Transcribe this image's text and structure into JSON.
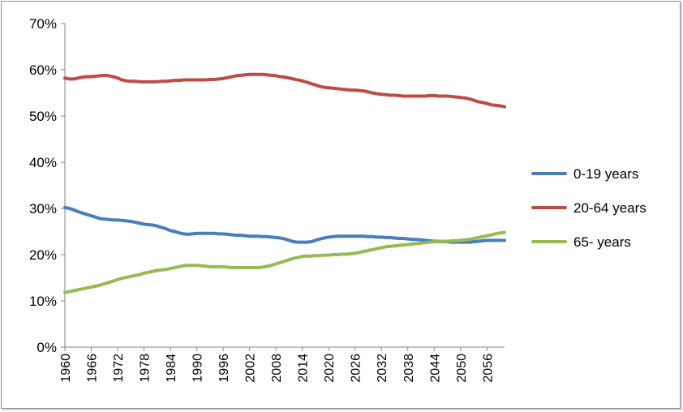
{
  "chart_data": {
    "type": "line",
    "title": "",
    "xlabel": "",
    "ylabel": "",
    "ylim": [
      0,
      0.7
    ],
    "xlim": [
      1960,
      2060
    ],
    "y_tick_values": [
      0,
      0.1,
      0.2,
      0.3,
      0.4,
      0.5,
      0.6,
      0.7
    ],
    "y_tick_labels": [
      "0%",
      "10%",
      "20%",
      "30%",
      "40%",
      "50%",
      "60%",
      "70%"
    ],
    "x_tick_values": [
      1960,
      1966,
      1972,
      1978,
      1984,
      1990,
      1996,
      2002,
      2008,
      2014,
      2020,
      2026,
      2032,
      2038,
      2044,
      2050,
      2056
    ],
    "x_tick_labels": [
      "1960",
      "1966",
      "1972",
      "1978",
      "1984",
      "1990",
      "1996",
      "2002",
      "2008",
      "2014",
      "2020",
      "2026",
      "2032",
      "2038",
      "2044",
      "2050",
      "2056"
    ],
    "grid": false,
    "legend_position": "right",
    "series": [
      {
        "name": "0-19 years",
        "color": "#4a7ebb",
        "points": [
          [
            1960,
            0.302
          ],
          [
            1961,
            0.3
          ],
          [
            1962,
            0.297
          ],
          [
            1963,
            0.293
          ],
          [
            1964,
            0.29
          ],
          [
            1965,
            0.287
          ],
          [
            1966,
            0.284
          ],
          [
            1967,
            0.281
          ],
          [
            1968,
            0.278
          ],
          [
            1969,
            0.277
          ],
          [
            1970,
            0.276
          ],
          [
            1971,
            0.275
          ],
          [
            1972,
            0.275
          ],
          [
            1973,
            0.274
          ],
          [
            1974,
            0.273
          ],
          [
            1975,
            0.272
          ],
          [
            1976,
            0.27
          ],
          [
            1977,
            0.268
          ],
          [
            1978,
            0.266
          ],
          [
            1979,
            0.265
          ],
          [
            1980,
            0.264
          ],
          [
            1981,
            0.262
          ],
          [
            1982,
            0.259
          ],
          [
            1983,
            0.256
          ],
          [
            1984,
            0.252
          ],
          [
            1985,
            0.25
          ],
          [
            1986,
            0.247
          ],
          [
            1987,
            0.245
          ],
          [
            1988,
            0.244
          ],
          [
            1989,
            0.245
          ],
          [
            1990,
            0.246
          ],
          [
            1991,
            0.246
          ],
          [
            1992,
            0.246
          ],
          [
            1993,
            0.246
          ],
          [
            1994,
            0.246
          ],
          [
            1995,
            0.245
          ],
          [
            1996,
            0.245
          ],
          [
            1997,
            0.244
          ],
          [
            1998,
            0.243
          ],
          [
            1999,
            0.242
          ],
          [
            2000,
            0.242
          ],
          [
            2001,
            0.241
          ],
          [
            2002,
            0.24
          ],
          [
            2003,
            0.24
          ],
          [
            2004,
            0.24
          ],
          [
            2005,
            0.239
          ],
          [
            2006,
            0.239
          ],
          [
            2007,
            0.238
          ],
          [
            2008,
            0.237
          ],
          [
            2009,
            0.236
          ],
          [
            2010,
            0.234
          ],
          [
            2011,
            0.231
          ],
          [
            2012,
            0.228
          ],
          [
            2013,
            0.227
          ],
          [
            2014,
            0.227
          ],
          [
            2015,
            0.227
          ],
          [
            2016,
            0.228
          ],
          [
            2017,
            0.231
          ],
          [
            2018,
            0.234
          ],
          [
            2019,
            0.236
          ],
          [
            2020,
            0.238
          ],
          [
            2021,
            0.239
          ],
          [
            2022,
            0.24
          ],
          [
            2023,
            0.24
          ],
          [
            2024,
            0.24
          ],
          [
            2025,
            0.24
          ],
          [
            2026,
            0.24
          ],
          [
            2027,
            0.24
          ],
          [
            2028,
            0.24
          ],
          [
            2029,
            0.239
          ],
          [
            2030,
            0.239
          ],
          [
            2031,
            0.238
          ],
          [
            2032,
            0.238
          ],
          [
            2033,
            0.237
          ],
          [
            2034,
            0.237
          ],
          [
            2035,
            0.236
          ],
          [
            2036,
            0.235
          ],
          [
            2037,
            0.235
          ],
          [
            2038,
            0.234
          ],
          [
            2039,
            0.233
          ],
          [
            2040,
            0.233
          ],
          [
            2041,
            0.232
          ],
          [
            2042,
            0.231
          ],
          [
            2043,
            0.23
          ],
          [
            2044,
            0.229
          ],
          [
            2045,
            0.229
          ],
          [
            2046,
            0.228
          ],
          [
            2047,
            0.228
          ],
          [
            2048,
            0.227
          ],
          [
            2049,
            0.227
          ],
          [
            2050,
            0.227
          ],
          [
            2051,
            0.227
          ],
          [
            2052,
            0.227
          ],
          [
            2053,
            0.228
          ],
          [
            2054,
            0.229
          ],
          [
            2055,
            0.23
          ],
          [
            2056,
            0.231
          ],
          [
            2057,
            0.231
          ],
          [
            2058,
            0.231
          ],
          [
            2059,
            0.231
          ],
          [
            2060,
            0.231
          ]
        ]
      },
      {
        "name": "20-64 years",
        "color": "#be4b48",
        "points": [
          [
            1960,
            0.582
          ],
          [
            1961,
            0.58
          ],
          [
            1962,
            0.58
          ],
          [
            1963,
            0.582
          ],
          [
            1964,
            0.584
          ],
          [
            1965,
            0.585
          ],
          [
            1966,
            0.585
          ],
          [
            1967,
            0.586
          ],
          [
            1968,
            0.587
          ],
          [
            1969,
            0.588
          ],
          [
            1970,
            0.587
          ],
          [
            1971,
            0.585
          ],
          [
            1972,
            0.582
          ],
          [
            1973,
            0.578
          ],
          [
            1974,
            0.576
          ],
          [
            1975,
            0.575
          ],
          [
            1976,
            0.575
          ],
          [
            1977,
            0.574
          ],
          [
            1978,
            0.574
          ],
          [
            1979,
            0.574
          ],
          [
            1980,
            0.574
          ],
          [
            1981,
            0.574
          ],
          [
            1982,
            0.575
          ],
          [
            1983,
            0.575
          ],
          [
            1984,
            0.576
          ],
          [
            1985,
            0.577
          ],
          [
            1986,
            0.577
          ],
          [
            1987,
            0.578
          ],
          [
            1988,
            0.578
          ],
          [
            1989,
            0.578
          ],
          [
            1990,
            0.578
          ],
          [
            1991,
            0.578
          ],
          [
            1992,
            0.578
          ],
          [
            1993,
            0.579
          ],
          [
            1994,
            0.579
          ],
          [
            1995,
            0.58
          ],
          [
            1996,
            0.581
          ],
          [
            1997,
            0.583
          ],
          [
            1998,
            0.585
          ],
          [
            1999,
            0.587
          ],
          [
            2000,
            0.588
          ],
          [
            2001,
            0.589
          ],
          [
            2002,
            0.59
          ],
          [
            2003,
            0.59
          ],
          [
            2004,
            0.59
          ],
          [
            2005,
            0.59
          ],
          [
            2006,
            0.589
          ],
          [
            2007,
            0.588
          ],
          [
            2008,
            0.587
          ],
          [
            2009,
            0.585
          ],
          [
            2010,
            0.584
          ],
          [
            2011,
            0.582
          ],
          [
            2012,
            0.58
          ],
          [
            2013,
            0.578
          ],
          [
            2014,
            0.576
          ],
          [
            2015,
            0.573
          ],
          [
            2016,
            0.57
          ],
          [
            2017,
            0.567
          ],
          [
            2018,
            0.564
          ],
          [
            2019,
            0.562
          ],
          [
            2020,
            0.561
          ],
          [
            2021,
            0.56
          ],
          [
            2022,
            0.559
          ],
          [
            2023,
            0.558
          ],
          [
            2024,
            0.557
          ],
          [
            2025,
            0.556
          ],
          [
            2026,
            0.556
          ],
          [
            2027,
            0.555
          ],
          [
            2028,
            0.554
          ],
          [
            2029,
            0.552
          ],
          [
            2030,
            0.55
          ],
          [
            2031,
            0.548
          ],
          [
            2032,
            0.547
          ],
          [
            2033,
            0.546
          ],
          [
            2034,
            0.545
          ],
          [
            2035,
            0.545
          ],
          [
            2036,
            0.544
          ],
          [
            2037,
            0.543
          ],
          [
            2038,
            0.543
          ],
          [
            2039,
            0.543
          ],
          [
            2040,
            0.543
          ],
          [
            2041,
            0.543
          ],
          [
            2042,
            0.543
          ],
          [
            2043,
            0.544
          ],
          [
            2044,
            0.544
          ],
          [
            2045,
            0.543
          ],
          [
            2046,
            0.543
          ],
          [
            2047,
            0.543
          ],
          [
            2048,
            0.542
          ],
          [
            2049,
            0.541
          ],
          [
            2050,
            0.54
          ],
          [
            2051,
            0.539
          ],
          [
            2052,
            0.537
          ],
          [
            2053,
            0.534
          ],
          [
            2054,
            0.531
          ],
          [
            2055,
            0.529
          ],
          [
            2056,
            0.527
          ],
          [
            2057,
            0.524
          ],
          [
            2058,
            0.523
          ],
          [
            2059,
            0.522
          ],
          [
            2060,
            0.52
          ]
        ]
      },
      {
        "name": "65- years",
        "color": "#98b954",
        "points": [
          [
            1960,
            0.118
          ],
          [
            1961,
            0.12
          ],
          [
            1962,
            0.122
          ],
          [
            1963,
            0.124
          ],
          [
            1964,
            0.126
          ],
          [
            1965,
            0.128
          ],
          [
            1966,
            0.13
          ],
          [
            1967,
            0.132
          ],
          [
            1968,
            0.134
          ],
          [
            1969,
            0.137
          ],
          [
            1970,
            0.14
          ],
          [
            1971,
            0.143
          ],
          [
            1972,
            0.146
          ],
          [
            1973,
            0.149
          ],
          [
            1974,
            0.151
          ],
          [
            1975,
            0.153
          ],
          [
            1976,
            0.155
          ],
          [
            1977,
            0.157
          ],
          [
            1978,
            0.16
          ],
          [
            1979,
            0.162
          ],
          [
            1980,
            0.164
          ],
          [
            1981,
            0.166
          ],
          [
            1982,
            0.167
          ],
          [
            1983,
            0.168
          ],
          [
            1984,
            0.17
          ],
          [
            1985,
            0.172
          ],
          [
            1986,
            0.174
          ],
          [
            1987,
            0.176
          ],
          [
            1988,
            0.177
          ],
          [
            1989,
            0.177
          ],
          [
            1990,
            0.177
          ],
          [
            1991,
            0.176
          ],
          [
            1992,
            0.175
          ],
          [
            1993,
            0.174
          ],
          [
            1994,
            0.174
          ],
          [
            1995,
            0.174
          ],
          [
            1996,
            0.174
          ],
          [
            1997,
            0.173
          ],
          [
            1998,
            0.172
          ],
          [
            1999,
            0.172
          ],
          [
            2000,
            0.172
          ],
          [
            2001,
            0.172
          ],
          [
            2002,
            0.172
          ],
          [
            2003,
            0.172
          ],
          [
            2004,
            0.172
          ],
          [
            2005,
            0.173
          ],
          [
            2006,
            0.175
          ],
          [
            2007,
            0.177
          ],
          [
            2008,
            0.18
          ],
          [
            2009,
            0.183
          ],
          [
            2010,
            0.186
          ],
          [
            2011,
            0.189
          ],
          [
            2012,
            0.192
          ],
          [
            2013,
            0.194
          ],
          [
            2014,
            0.196
          ],
          [
            2015,
            0.197
          ],
          [
            2016,
            0.197
          ],
          [
            2017,
            0.198
          ],
          [
            2018,
            0.198
          ],
          [
            2019,
            0.199
          ],
          [
            2020,
            0.199
          ],
          [
            2021,
            0.2
          ],
          [
            2022,
            0.2
          ],
          [
            2023,
            0.201
          ],
          [
            2024,
            0.201
          ],
          [
            2025,
            0.202
          ],
          [
            2026,
            0.203
          ],
          [
            2027,
            0.205
          ],
          [
            2028,
            0.207
          ],
          [
            2029,
            0.209
          ],
          [
            2030,
            0.211
          ],
          [
            2031,
            0.213
          ],
          [
            2032,
            0.215
          ],
          [
            2033,
            0.217
          ],
          [
            2034,
            0.218
          ],
          [
            2035,
            0.219
          ],
          [
            2036,
            0.22
          ],
          [
            2037,
            0.221
          ],
          [
            2038,
            0.222
          ],
          [
            2039,
            0.223
          ],
          [
            2040,
            0.224
          ],
          [
            2041,
            0.225
          ],
          [
            2042,
            0.226
          ],
          [
            2043,
            0.227
          ],
          [
            2044,
            0.228
          ],
          [
            2045,
            0.228
          ],
          [
            2046,
            0.229
          ],
          [
            2047,
            0.229
          ],
          [
            2048,
            0.23
          ],
          [
            2049,
            0.23
          ],
          [
            2050,
            0.231
          ],
          [
            2051,
            0.232
          ],
          [
            2052,
            0.233
          ],
          [
            2053,
            0.235
          ],
          [
            2054,
            0.237
          ],
          [
            2055,
            0.239
          ],
          [
            2056,
            0.241
          ],
          [
            2057,
            0.243
          ],
          [
            2058,
            0.245
          ],
          [
            2059,
            0.247
          ],
          [
            2060,
            0.248
          ]
        ]
      }
    ]
  }
}
